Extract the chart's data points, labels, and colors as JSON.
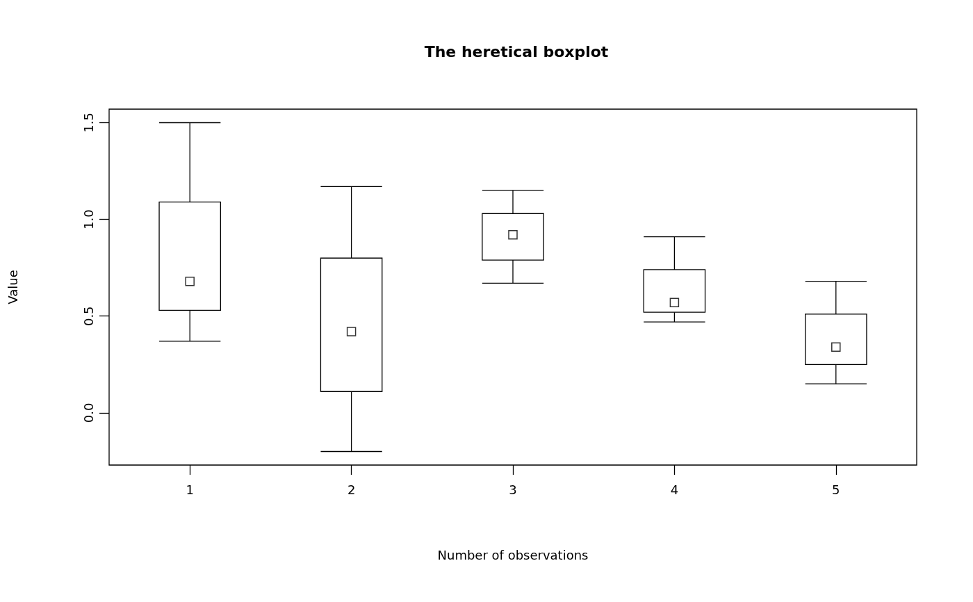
{
  "chart_data": {
    "type": "box",
    "title": "The heretical boxplot",
    "xlabel": "Number of observations",
    "ylabel": "Value",
    "categories": [
      "1",
      "2",
      "3",
      "4",
      "5"
    ],
    "boxes": [
      {
        "low": 0.37,
        "q1": 0.53,
        "median": 0.68,
        "q3": 1.09,
        "high": 1.5
      },
      {
        "low": -0.2,
        "q1": 0.11,
        "median": 0.42,
        "q3": 0.8,
        "high": 1.17
      },
      {
        "low": 0.67,
        "q1": 0.79,
        "median": 0.92,
        "q3": 1.03,
        "high": 1.15
      },
      {
        "low": 0.47,
        "q1": 0.52,
        "median": 0.57,
        "q3": 0.74,
        "high": 0.91
      },
      {
        "low": 0.15,
        "q1": 0.25,
        "median": 0.34,
        "q3": 0.51,
        "high": 0.68
      }
    ],
    "color": "#000000",
    "marker": "square",
    "ylim": [
      -0.27,
      1.57
    ],
    "yticks": [
      {
        "value": 0,
        "label": "0.0"
      },
      {
        "value": 0.5,
        "label": "0.5"
      },
      {
        "value": 1,
        "label": "1.0"
      },
      {
        "value": 1.5,
        "label": "1.5"
      }
    ],
    "grid": false
  }
}
